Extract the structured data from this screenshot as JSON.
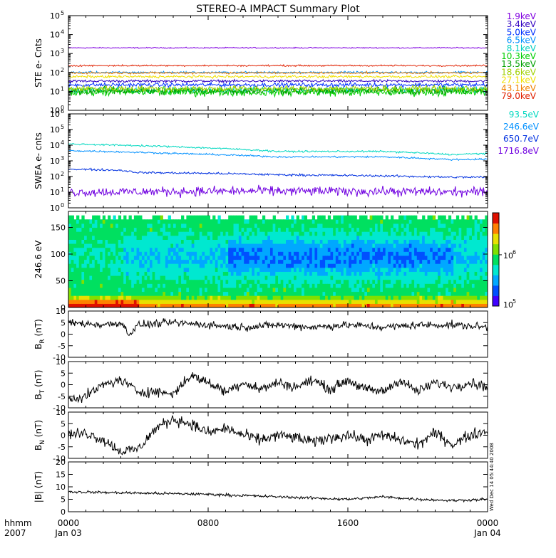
{
  "title": "STEREO-A IMPACT Summary Plot",
  "x_axis": {
    "row1_label": "hhmm",
    "row2_label": "2007",
    "ticks": [
      {
        "t": 0,
        "line1": "0000",
        "line2": "Jan 03"
      },
      {
        "t": 8,
        "line1": "0800",
        "line2": ""
      },
      {
        "t": 16,
        "line1": "1600",
        "line2": ""
      },
      {
        "t": 24,
        "line1": "0000",
        "line2": "Jan 04"
      }
    ],
    "range_hours": [
      0,
      24
    ]
  },
  "side_stamp": "Wed Dec 14 05:44:40 2008",
  "colorbar": {
    "low_label": "10",
    "low_exp": "5",
    "high_label": "10",
    "high_exp": "6",
    "colors": [
      "#4000ff",
      "#0050ff",
      "#00a8ff",
      "#00e8d0",
      "#00e060",
      "#80e000",
      "#e8e000",
      "#ff8000",
      "#e01000"
    ]
  },
  "chart_data": [
    {
      "type": "line",
      "id": "ste",
      "ylabel": "STE e- Cnts",
      "yscale": "log",
      "ylim": [
        1,
        100000
      ],
      "ytick_exponents": [
        "0",
        "1",
        "2",
        "3",
        "4",
        "5"
      ],
      "series": [
        {
          "name": "1.9keV",
          "color": "#8000e0",
          "level": 2000,
          "noise": 0.02
        },
        {
          "name": "3.4keV",
          "color": "#3000c0",
          "level": 35,
          "noise": 0.05
        },
        {
          "name": "5.0keV",
          "color": "#0030ff",
          "level": 22,
          "noise": 0.08
        },
        {
          "name": "6.5keV",
          "color": "#0090ff",
          "level": 100,
          "noise": 0.04
        },
        {
          "name": "8.1keV",
          "color": "#00d0c0",
          "level": 12,
          "noise": 0.12
        },
        {
          "name": "10.3keV",
          "color": "#00d000",
          "level": 9,
          "noise": 0.15
        },
        {
          "name": "13.5keV",
          "color": "#00a000",
          "level": 11,
          "noise": 0.15
        },
        {
          "name": "18.6keV",
          "color": "#a0d000",
          "level": 14,
          "noise": 0.12
        },
        {
          "name": "27.1keV",
          "color": "#f0e000",
          "level": 60,
          "noise": 0.05
        },
        {
          "name": "43.1keV",
          "color": "#f08000",
          "level": 95,
          "noise": 0.04
        },
        {
          "name": "79.0keV",
          "color": "#e02000",
          "level": 230,
          "noise": 0.03
        }
      ]
    },
    {
      "type": "line",
      "id": "swea",
      "ylabel": "SWEA e- cnts",
      "yscale": "log",
      "ylim": [
        1,
        1000000
      ],
      "ytick_exponents": [
        "0",
        "1",
        "2",
        "3",
        "4",
        "5",
        "6"
      ],
      "series": [
        {
          "name": "1716.8eV",
          "color": "#7000e0",
          "x": [
            0,
            6,
            12,
            18,
            24
          ],
          "y": [
            10,
            11,
            12,
            11,
            10
          ],
          "noise": 0.22
        },
        {
          "name": "650.7eV",
          "color": "#0030e0",
          "x": [
            0,
            3,
            4,
            8,
            12,
            18,
            22,
            24
          ],
          "y": [
            300,
            250,
            180,
            160,
            130,
            110,
            90,
            90
          ],
          "noise": 0.05
        },
        {
          "name": "246.6eV",
          "color": "#0090ff",
          "x": [
            0,
            6,
            12,
            18,
            22,
            24
          ],
          "y": [
            4500,
            3000,
            1800,
            1800,
            1200,
            1300
          ],
          "noise": 0.04
        },
        {
          "name": "93.5eV",
          "color": "#00d8c0",
          "x": [
            0,
            6,
            12,
            18,
            22,
            24
          ],
          "y": [
            12000,
            8000,
            4000,
            4000,
            2500,
            3000
          ],
          "noise": 0.04
        }
      ]
    },
    {
      "type": "heatmap",
      "id": "pad",
      "ylabel": "246.6 eV",
      "ylim": [
        0,
        180
      ],
      "yticks": [
        0,
        50,
        100,
        150
      ]
    },
    {
      "type": "line",
      "id": "br",
      "ylabel": "B",
      "ylabel_sub": "R",
      "ylabel_unit": "(nT)",
      "ylim": [
        -10,
        10
      ],
      "yticks": [
        -10,
        -5,
        0,
        5,
        10
      ],
      "x": [
        0,
        2,
        3,
        3.5,
        4,
        6,
        8,
        10,
        12,
        14,
        16,
        18,
        20,
        22,
        24
      ],
      "y": [
        5,
        4,
        5,
        0,
        4,
        5,
        4,
        3,
        4,
        3,
        4,
        3,
        4,
        4,
        3
      ],
      "noise": 1.2
    },
    {
      "type": "line",
      "id": "bt",
      "ylabel": "B",
      "ylabel_sub": "T",
      "ylabel_unit": "(nT)",
      "ylim": [
        -10,
        10
      ],
      "yticks": [
        -10,
        -5,
        0,
        5,
        10
      ],
      "x": [
        0,
        1,
        2,
        3,
        4,
        5,
        6,
        7,
        8,
        9,
        10,
        11,
        12,
        13,
        14,
        15,
        16,
        17,
        18,
        19,
        20,
        21,
        22,
        23,
        24
      ],
      "y": [
        -6,
        -5,
        0,
        2,
        -3,
        -3,
        -4,
        4,
        1,
        -3,
        1,
        -2,
        1,
        -1,
        2,
        -2,
        2,
        -2,
        -3,
        2,
        -3,
        1,
        -1,
        1,
        -1
      ],
      "noise": 1.6
    },
    {
      "type": "line",
      "id": "bn",
      "ylabel": "B",
      "ylabel_sub": "N",
      "ylabel_unit": "(nT)",
      "ylim": [
        -10,
        10
      ],
      "yticks": [
        -10,
        -5,
        0,
        5,
        10
      ],
      "x": [
        0,
        1,
        2,
        3,
        4,
        5,
        6,
        7,
        8,
        9,
        10,
        11,
        12,
        13,
        14,
        15,
        16,
        17,
        18,
        19,
        20,
        21,
        22,
        23,
        24
      ],
      "y": [
        0,
        1,
        -2,
        -7,
        -6,
        3,
        7,
        5,
        1,
        3,
        0,
        -2,
        0,
        -1,
        -3,
        -1,
        0,
        -2,
        0,
        -2,
        -4,
        1,
        -4,
        0,
        2
      ],
      "noise": 1.8
    },
    {
      "type": "line",
      "id": "bmag",
      "ylabel": "|B| (nT)",
      "ylim": [
        0,
        20
      ],
      "yticks": [
        0,
        5,
        10,
        15,
        20
      ],
      "x": [
        0,
        4,
        8,
        12,
        16,
        18,
        20,
        22,
        24
      ],
      "y": [
        8,
        7.5,
        7,
        6,
        5,
        6,
        5,
        4.5,
        5
      ],
      "noise": 0.4
    }
  ]
}
